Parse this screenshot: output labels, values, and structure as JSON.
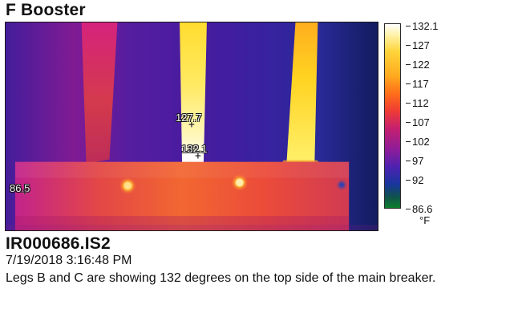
{
  "report": {
    "title": "F Booster",
    "file_name": "IR000686.IS2",
    "timestamp": "7/19/2018 3:16:48 PM",
    "description": "Legs B and C are showing 132 degrees on the top side of the main breaker."
  },
  "thermal_image": {
    "markers": [
      {
        "label": "127.7"
      },
      {
        "label": "132.1"
      },
      {
        "label": "86.5"
      }
    ],
    "colors": {
      "hot": "#ffffff",
      "yellow": "#ffd43a",
      "orange": "#ff7a1d",
      "red": "#ea3b35",
      "magenta": "#c21f73",
      "purple": "#5a23b0",
      "blue": "#203da8",
      "green": "#10883a"
    }
  },
  "scale": {
    "unit": "°F",
    "ticks": [
      "132.1",
      "127",
      "122",
      "117",
      "112",
      "107",
      "102",
      "97",
      "92",
      "86.6"
    ]
  }
}
